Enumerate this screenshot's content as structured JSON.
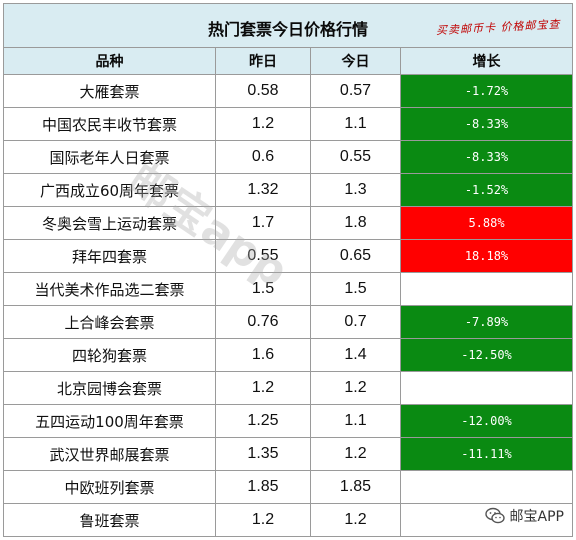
{
  "title": "热门套票今日价格行情",
  "tagline": "买卖邮币卡 价格邮宝查",
  "columns": {
    "name": "品种",
    "yesterday": "昨日",
    "today": "今日",
    "growth": "增长"
  },
  "rows": [
    {
      "name": "大雁套票",
      "yesterday": "0.58",
      "today": "0.57",
      "growth": "-1.72%",
      "trend": "down"
    },
    {
      "name": "中国农民丰收节套票",
      "yesterday": "1.2",
      "today": "1.1",
      "growth": "-8.33%",
      "trend": "down"
    },
    {
      "name": "国际老年人日套票",
      "yesterday": "0.6",
      "today": "0.55",
      "growth": "-8.33%",
      "trend": "down"
    },
    {
      "name": "广西成立60周年套票",
      "yesterday": "1.32",
      "today": "1.3",
      "growth": "-1.52%",
      "trend": "down"
    },
    {
      "name": "冬奥会雪上运动套票",
      "yesterday": "1.7",
      "today": "1.8",
      "growth": "5.88%",
      "trend": "up"
    },
    {
      "name": "拜年四套票",
      "yesterday": "0.55",
      "today": "0.65",
      "growth": "18.18%",
      "trend": "up"
    },
    {
      "name": "当代美术作品选二套票",
      "yesterday": "1.5",
      "today": "1.5",
      "growth": "",
      "trend": "flat"
    },
    {
      "name": "上合峰会套票",
      "yesterday": "0.76",
      "today": "0.7",
      "growth": "-7.89%",
      "trend": "down"
    },
    {
      "name": "四轮狗套票",
      "yesterday": "1.6",
      "today": "1.4",
      "growth": "-12.50%",
      "trend": "down"
    },
    {
      "name": "北京园博会套票",
      "yesterday": "1.2",
      "today": "1.2",
      "growth": "",
      "trend": "flat"
    },
    {
      "name": "五四运动100周年套票",
      "yesterday": "1.25",
      "today": "1.1",
      "growth": "-12.00%",
      "trend": "down"
    },
    {
      "name": "武汉世界邮展套票",
      "yesterday": "1.35",
      "today": "1.2",
      "growth": "-11.11%",
      "trend": "down"
    },
    {
      "name": "中欧班列套票",
      "yesterday": "1.85",
      "today": "1.85",
      "growth": "",
      "trend": "flat"
    },
    {
      "name": "鲁班套票",
      "yesterday": "1.2",
      "today": "1.2",
      "growth": "",
      "trend": "flat"
    }
  ],
  "watermark": "邮宝app",
  "badge": {
    "label": "邮宝APP",
    "icon": "wechat-icon"
  },
  "colors": {
    "header_bg": "#d9ecf2",
    "down_bg": "#0a8a12",
    "up_bg": "#ff0000",
    "tagline": "#c00000"
  }
}
